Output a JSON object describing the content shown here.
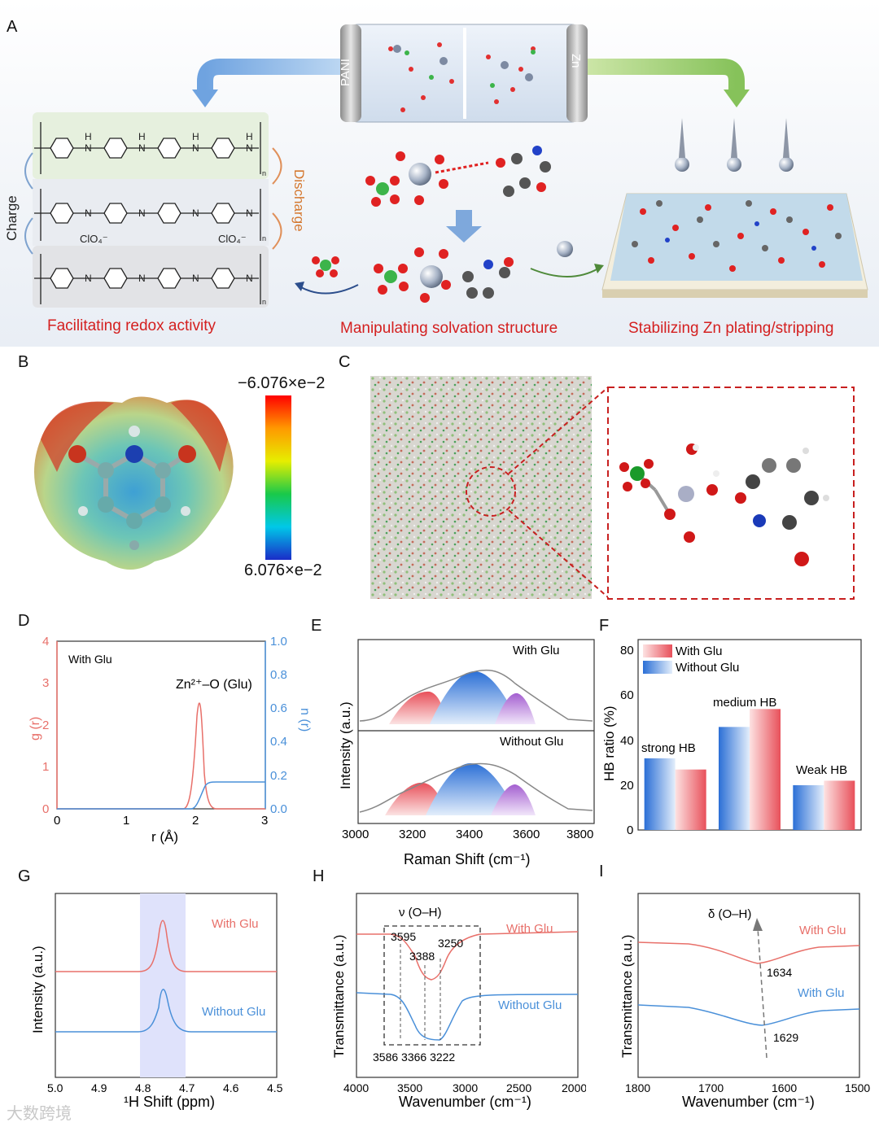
{
  "panel_labels": {
    "A": "A",
    "B": "B",
    "C": "C",
    "D": "D",
    "E": "E",
    "F": "F",
    "G": "G",
    "H": "H",
    "I": "I"
  },
  "panel_a": {
    "battery_left": "PANI",
    "battery_right": "Zn",
    "charge": "Charge",
    "discharge": "Discharge",
    "clo4": "ClO₄⁻",
    "caption_left": "Facilitating redox activity",
    "caption_mid": "Manipulating solvation structure",
    "caption_right": "Stabilizing Zn plating/stripping"
  },
  "panel_b": {
    "scale_top": "−6.076×e−2",
    "scale_bottom": "6.076×e−2"
  },
  "panel_d": {
    "inner_label": "With Glu",
    "pair_label": "Zn²⁺–O (Glu)",
    "xlabel": "r (Å)",
    "ylabel_left": "g (r)",
    "ylabel_right": "n (r)",
    "xticks": [
      "0",
      "1",
      "2",
      "3"
    ],
    "yticks_left": [
      "0",
      "1",
      "2",
      "3",
      "4"
    ],
    "yticks_right": [
      "0.0",
      "0.2",
      "0.4",
      "0.6",
      "0.8",
      "1.0"
    ],
    "colors": {
      "g": "#e8706a",
      "n": "#4a90d9"
    }
  },
  "panel_e": {
    "label_top": "With Glu",
    "label_bottom": "Without Glu",
    "ylabel": "Intensity (a.u.)",
    "xlabel": "Raman Shift (cm⁻¹)",
    "xticks": [
      "3000",
      "3200",
      "3400",
      "3600",
      "3800"
    ]
  },
  "panel_f": {
    "legend": [
      "With Glu",
      "Without Glu"
    ],
    "ylabel": "HB ratio (%)",
    "annotations": [
      "strong HB",
      "medium HB",
      "Weak HB"
    ],
    "yticks": [
      "0",
      "20",
      "40",
      "60",
      "80"
    ]
  },
  "panel_g": {
    "label_with": "With Glu",
    "label_without": "Without Glu",
    "ylabel": "Intensity (a.u.)",
    "xlabel": "¹H Shift (ppm)",
    "xticks": [
      "5.0",
      "4.9",
      "4.8",
      "4.7",
      "4.6",
      "4.5"
    ]
  },
  "panel_h": {
    "title": "ν (O–H)",
    "label_with": "With Glu",
    "label_without": "Without Glu",
    "peaks_top": [
      "3595",
      "3388",
      "3250"
    ],
    "peaks_bottom": [
      "3586 3366 3222"
    ],
    "ylabel": "Transmittance (a.u.)",
    "xlabel": "Wavenumber (cm⁻¹)",
    "xticks": [
      "4000",
      "3500",
      "3000",
      "2500",
      "2000"
    ]
  },
  "panel_i": {
    "title": "δ (O–H)",
    "label_top": "With Glu",
    "label_bottom": "With Glu",
    "peak_top": "1634",
    "peak_bottom": "1629",
    "ylabel": "Transmittance (a.u.)",
    "xlabel": "Wavenumber (cm⁻¹)",
    "xticks": [
      "1800",
      "1700",
      "1600",
      "1500"
    ]
  },
  "watermark": "大数跨境",
  "chart_data": [
    {
      "type": "line",
      "id": "D",
      "title": "",
      "x_range": [
        0,
        3
      ],
      "series": [
        {
          "name": "g (r)",
          "peak_x": 2.05,
          "peak_y": 2.35
        },
        {
          "name": "n (r)",
          "plateau": 0.16
        }
      ]
    },
    {
      "type": "area",
      "id": "E",
      "xlim": [
        3000,
        3800
      ],
      "series": [
        {
          "name": "With Glu",
          "peaks": [
            3230,
            3420,
            3580
          ]
        },
        {
          "name": "Without Glu",
          "peaks": [
            3230,
            3420,
            3580
          ]
        }
      ]
    },
    {
      "type": "bar",
      "id": "F",
      "ylim": [
        0,
        85
      ],
      "categories": [
        "strong HB",
        "medium HB",
        "Weak HB"
      ],
      "series": [
        {
          "name": "With Glu",
          "values": [
            27,
            54,
            22
          ]
        },
        {
          "name": "Without Glu",
          "values": [
            32,
            46,
            20
          ]
        }
      ]
    },
    {
      "type": "line",
      "id": "G",
      "xlim": [
        5.0,
        4.5
      ],
      "series": [
        {
          "name": "With Glu",
          "peak": 4.76
        },
        {
          "name": "Without Glu",
          "peak": 4.76
        }
      ]
    },
    {
      "type": "line",
      "id": "H",
      "xlim": [
        4000,
        2000
      ],
      "series": [
        {
          "name": "With Glu",
          "peaks": [
            3595,
            3388,
            3250
          ]
        },
        {
          "name": "Without Glu",
          "peaks": [
            3586,
            3366,
            3222
          ]
        }
      ]
    },
    {
      "type": "line",
      "id": "I",
      "xlim": [
        1800,
        1500
      ],
      "series": [
        {
          "name": "With Glu",
          "peak": 1634
        },
        {
          "name": "With Glu",
          "peak": 1629
        }
      ]
    }
  ]
}
